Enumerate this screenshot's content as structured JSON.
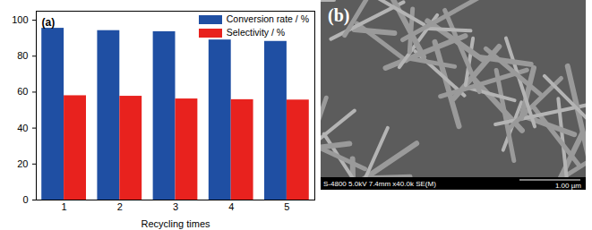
{
  "chart_data": {
    "type": "bar",
    "title": "(a)",
    "categories": [
      "1",
      "2",
      "3",
      "4",
      "5"
    ],
    "x_label": "Recycling times",
    "series": [
      {
        "name": "Conversion rate / %",
        "color": "#1f4fa3",
        "values": [
          95.5,
          94.2,
          93.6,
          89.0,
          88.2
        ]
      },
      {
        "name": "Selectivity / %",
        "color": "#e8221e",
        "values": [
          58.0,
          57.7,
          56.2,
          55.8,
          55.6
        ]
      }
    ],
    "ylim": [
      0,
      105
    ],
    "yticks": [
      0,
      20,
      40,
      60,
      80,
      100
    ],
    "legend": "upper right",
    "grid": false
  },
  "image": {
    "label": "(b)",
    "caption": "S-4800 5.0kV 7.4mm x40.0k SE(M)",
    "scale_bar": "1.00 µm"
  }
}
